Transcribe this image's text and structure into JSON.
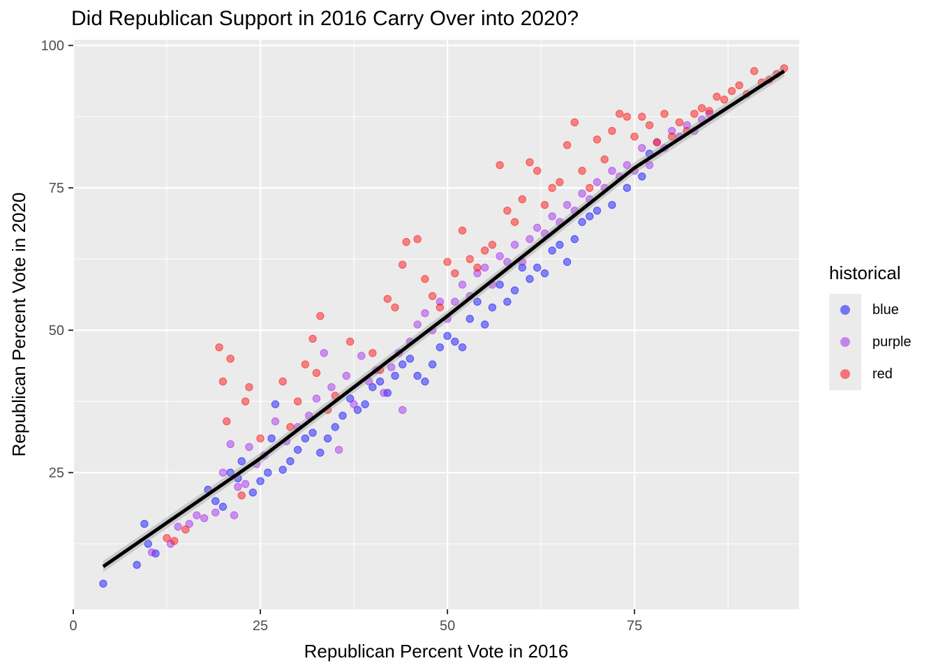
{
  "chart_data": {
    "type": "scatter",
    "title": "Did Republican Support in 2016 Carry Over into 2020?",
    "xlabel": "Republican Percent Vote in 2016",
    "ylabel": "Republican Percent Vote in 2020",
    "xlim": [
      0,
      97
    ],
    "ylim": [
      1,
      101
    ],
    "x_ticks": [
      0,
      25,
      50,
      75
    ],
    "y_ticks": [
      25,
      50,
      75,
      100
    ],
    "grid": true,
    "legend": {
      "title": "historical",
      "placement": "right",
      "entries": [
        {
          "label": "blue",
          "color": "#0000ff"
        },
        {
          "label": "purple",
          "color": "#a020f0"
        },
        {
          "label": "red",
          "color": "#ff0000"
        }
      ]
    },
    "series": [
      {
        "name": "blue",
        "color": "#0000ff",
        "points": [
          [
            4,
            5.5
          ],
          [
            8.5,
            8.8
          ],
          [
            9.5,
            16
          ],
          [
            10,
            12.5
          ],
          [
            11,
            10.8
          ],
          [
            18,
            22
          ],
          [
            19,
            20
          ],
          [
            20,
            19
          ],
          [
            21,
            25
          ],
          [
            22,
            24
          ],
          [
            22.5,
            27
          ],
          [
            24,
            21.5
          ],
          [
            25,
            23.5
          ],
          [
            26,
            25
          ],
          [
            26.5,
            31
          ],
          [
            27,
            37
          ],
          [
            28,
            25.5
          ],
          [
            29,
            27
          ],
          [
            30,
            29
          ],
          [
            31,
            31
          ],
          [
            32,
            32
          ],
          [
            33,
            28.5
          ],
          [
            34,
            31
          ],
          [
            35,
            33
          ],
          [
            36,
            35
          ],
          [
            37,
            38
          ],
          [
            38,
            36
          ],
          [
            39,
            37
          ],
          [
            40,
            40
          ],
          [
            41,
            41
          ],
          [
            42,
            39
          ],
          [
            43,
            42
          ],
          [
            44,
            44
          ],
          [
            45,
            45
          ],
          [
            46,
            42
          ],
          [
            47,
            41
          ],
          [
            48,
            44
          ],
          [
            49,
            47
          ],
          [
            50,
            49
          ],
          [
            51,
            48
          ],
          [
            52,
            47
          ],
          [
            53,
            52
          ],
          [
            54,
            55
          ],
          [
            55,
            51
          ],
          [
            56,
            54
          ],
          [
            57,
            58
          ],
          [
            58,
            55
          ],
          [
            59,
            57
          ],
          [
            60,
            61
          ],
          [
            61,
            59
          ],
          [
            62,
            61
          ],
          [
            63,
            60
          ],
          [
            64,
            64
          ],
          [
            65,
            65
          ],
          [
            66,
            62
          ],
          [
            67,
            66
          ],
          [
            68,
            69
          ],
          [
            69,
            70
          ],
          [
            70,
            71
          ],
          [
            72,
            72
          ],
          [
            74,
            75
          ],
          [
            76,
            77
          ],
          [
            77,
            81
          ]
        ]
      },
      {
        "name": "purple",
        "color": "#a020f0",
        "points": [
          [
            10.5,
            11
          ],
          [
            13,
            12.5
          ],
          [
            14,
            15.5
          ],
          [
            15.5,
            16
          ],
          [
            16.5,
            17.5
          ],
          [
            17.5,
            17
          ],
          [
            19,
            18
          ],
          [
            20,
            25
          ],
          [
            21,
            30
          ],
          [
            21.5,
            17.5
          ],
          [
            22,
            22.5
          ],
          [
            23,
            23
          ],
          [
            23.5,
            29.5
          ],
          [
            24.5,
            26.5
          ],
          [
            25.5,
            28
          ],
          [
            27,
            34
          ],
          [
            28.5,
            30.5
          ],
          [
            30,
            33
          ],
          [
            31.5,
            35
          ],
          [
            32.5,
            38
          ],
          [
            33.5,
            46
          ],
          [
            34.5,
            40
          ],
          [
            35.5,
            29
          ],
          [
            36.5,
            42
          ],
          [
            37.5,
            37
          ],
          [
            38.5,
            45.5
          ],
          [
            39.5,
            41
          ],
          [
            40.5,
            43
          ],
          [
            41.5,
            39
          ],
          [
            42.5,
            43.5
          ],
          [
            43.5,
            46
          ],
          [
            44,
            36
          ],
          [
            45,
            48
          ],
          [
            46,
            51
          ],
          [
            47,
            53
          ],
          [
            48,
            50
          ],
          [
            49,
            55
          ],
          [
            50,
            52
          ],
          [
            51,
            55
          ],
          [
            52,
            58
          ],
          [
            53,
            56
          ],
          [
            54,
            60
          ],
          [
            55,
            61
          ],
          [
            56,
            58
          ],
          [
            57,
            63
          ],
          [
            58,
            62
          ],
          [
            59,
            65
          ],
          [
            60,
            62
          ],
          [
            61,
            66
          ],
          [
            62,
            68
          ],
          [
            63,
            67
          ],
          [
            64,
            70
          ],
          [
            65,
            69
          ],
          [
            66,
            72
          ],
          [
            67,
            71
          ],
          [
            68,
            74
          ],
          [
            69,
            73
          ],
          [
            70,
            76
          ],
          [
            71,
            75
          ],
          [
            72,
            78
          ],
          [
            73,
            77
          ],
          [
            74,
            79
          ],
          [
            75,
            78
          ],
          [
            76,
            82
          ],
          [
            77,
            79
          ],
          [
            78,
            83
          ],
          [
            79,
            82
          ],
          [
            80,
            85
          ],
          [
            81,
            84
          ],
          [
            82,
            86
          ],
          [
            83,
            85
          ],
          [
            84,
            87
          ],
          [
            85,
            88
          ]
        ]
      },
      {
        "name": "red",
        "color": "#ff0000",
        "points": [
          [
            12.5,
            13.5
          ],
          [
            13.5,
            13
          ],
          [
            15,
            15
          ],
          [
            19.5,
            47
          ],
          [
            20,
            41
          ],
          [
            20.5,
            34
          ],
          [
            21,
            45
          ],
          [
            22.5,
            21
          ],
          [
            23,
            37.5
          ],
          [
            23.5,
            40
          ],
          [
            25,
            31
          ],
          [
            28,
            41
          ],
          [
            29,
            33
          ],
          [
            30,
            37.5
          ],
          [
            31,
            44
          ],
          [
            32,
            48.5
          ],
          [
            32.5,
            42.5
          ],
          [
            33,
            52.5
          ],
          [
            34,
            36
          ],
          [
            35,
            38.5
          ],
          [
            37,
            48
          ],
          [
            40,
            46
          ],
          [
            41,
            43
          ],
          [
            42,
            55.5
          ],
          [
            43,
            54
          ],
          [
            44,
            61.5
          ],
          [
            44.5,
            65.5
          ],
          [
            46,
            66
          ],
          [
            47,
            59
          ],
          [
            48,
            56
          ],
          [
            49,
            54
          ],
          [
            50,
            62
          ],
          [
            51,
            60
          ],
          [
            52,
            67.5
          ],
          [
            53,
            62.5
          ],
          [
            54,
            61
          ],
          [
            55,
            64
          ],
          [
            56,
            65
          ],
          [
            57,
            79
          ],
          [
            58,
            71
          ],
          [
            59,
            69
          ],
          [
            60,
            73
          ],
          [
            61,
            79.5
          ],
          [
            62,
            78
          ],
          [
            63,
            72
          ],
          [
            64,
            75
          ],
          [
            65,
            76
          ],
          [
            66,
            82.5
          ],
          [
            67,
            86.5
          ],
          [
            68,
            78
          ],
          [
            69,
            75
          ],
          [
            70,
            83.5
          ],
          [
            71,
            80
          ],
          [
            72,
            85
          ],
          [
            73,
            88
          ],
          [
            74,
            87.5
          ],
          [
            75,
            84
          ],
          [
            76,
            87.5
          ],
          [
            77,
            86
          ],
          [
            78,
            83
          ],
          [
            79,
            88
          ],
          [
            80,
            84
          ],
          [
            81,
            86.5
          ],
          [
            82,
            85
          ],
          [
            83,
            88
          ],
          [
            84,
            89
          ],
          [
            85,
            88.5
          ],
          [
            86,
            91
          ],
          [
            87,
            90.5
          ],
          [
            88,
            92
          ],
          [
            89,
            93
          ],
          [
            90,
            91.5
          ],
          [
            91,
            95.5
          ],
          [
            92,
            93.5
          ],
          [
            93,
            94
          ],
          [
            94,
            95
          ],
          [
            95,
            96
          ]
        ]
      }
    ],
    "trend_line": {
      "x": [
        4,
        25,
        50,
        75,
        95
      ],
      "y": [
        8.5,
        27.5,
        52.5,
        78.5,
        95.5
      ]
    }
  }
}
